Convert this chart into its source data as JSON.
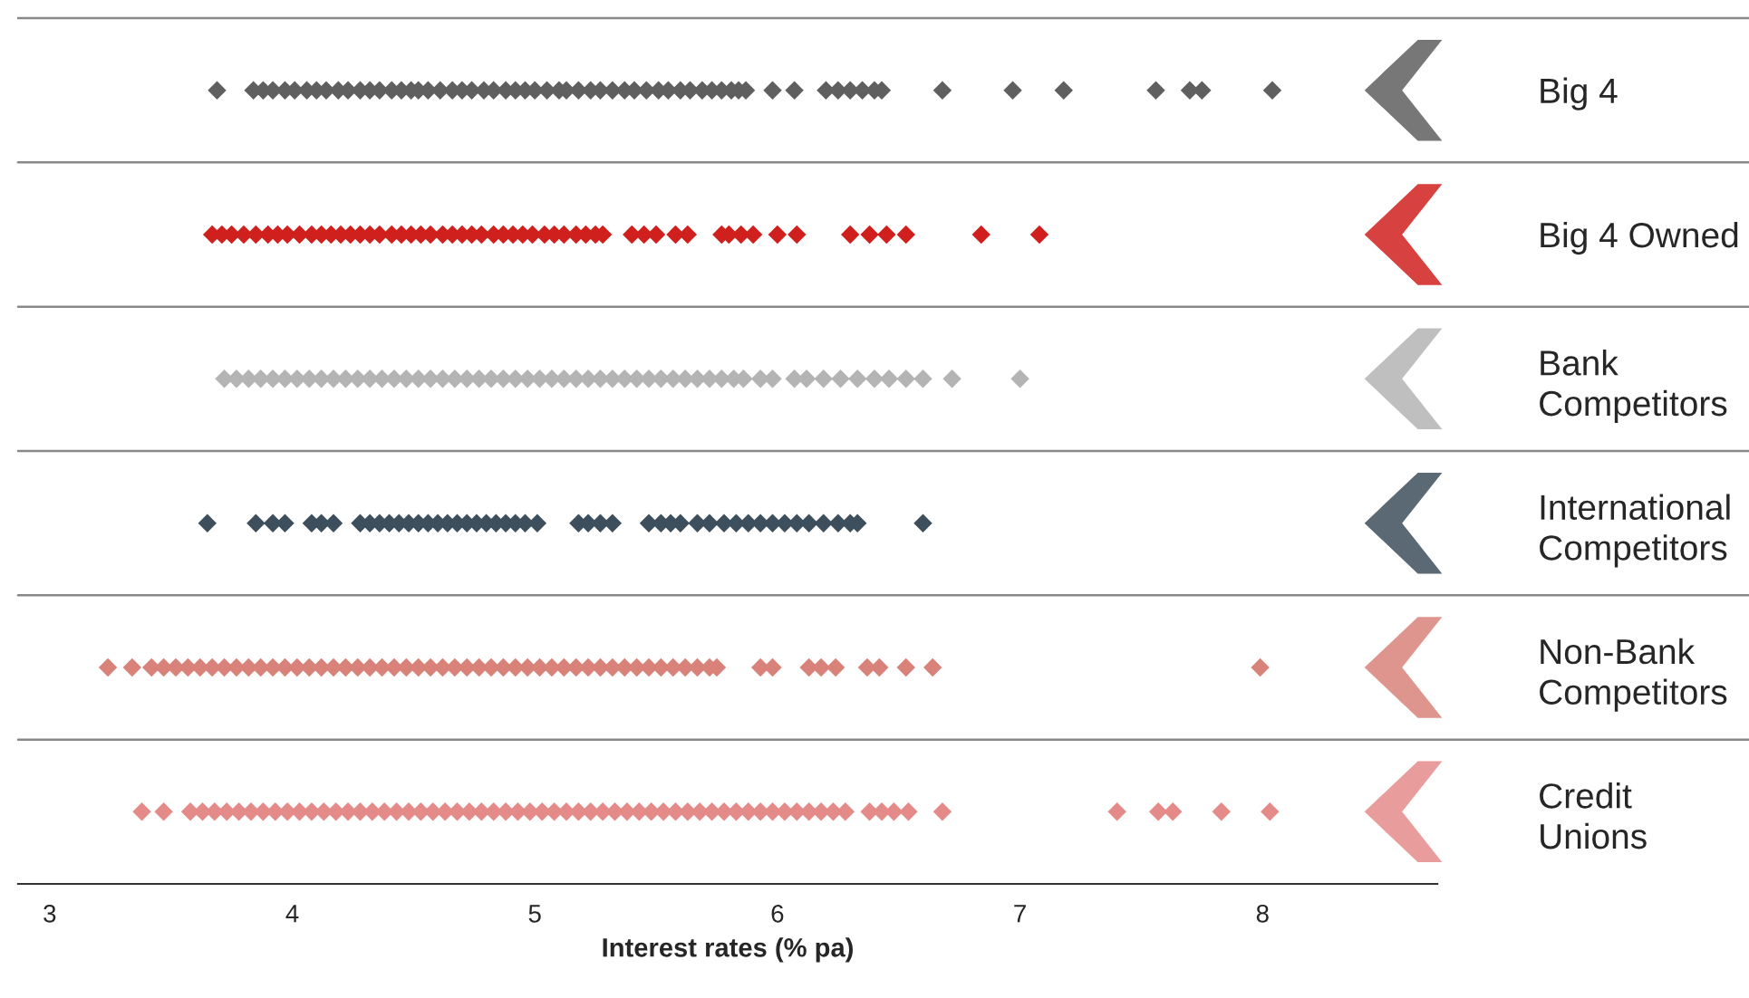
{
  "chart_data": {
    "type": "scatter",
    "orientation": "horizontal",
    "xlabel": "Interest rates (% pa)",
    "xlim": [
      2.87,
      8.72
    ],
    "xticks": [
      3,
      4,
      5,
      6,
      7,
      8
    ],
    "marker": "diamond",
    "grid": false,
    "categories": [
      "Big 4",
      "Big 4 Owned",
      "Bank Competitors",
      "International Competitors",
      "Non-Bank Competitors",
      "Credit Unions"
    ],
    "series": [
      {
        "color": "#5f5f5f",
        "x": [
          "Big 4",
          "Big 4",
          "Big 4",
          "Big 4",
          "Big 4",
          "Big 4",
          "Big 4",
          "Big 4",
          "Big 4",
          "Big 4",
          "Big 4",
          "Big 4",
          "Big 4",
          "Big 4",
          "Big 4",
          "Big 4",
          "Big 4",
          "Big 4",
          "Big 4",
          "Big 4",
          "Big 4",
          "Big 4",
          "Big 4",
          "Big 4",
          "Big 4",
          "Big 4",
          "Big 4",
          "Big 4",
          "Big 4",
          "Big 4",
          "Big 4",
          "Big 4",
          "Big 4",
          "Big 4",
          "Big 4",
          "Big 4",
          "Big 4",
          "Big 4",
          "Big 4",
          "Big 4",
          "Big 4",
          "Big 4",
          "Big 4",
          "Big 4",
          "Big 4",
          "Big 4",
          "Big 4",
          "Big 4",
          "Big 4",
          "Big 4",
          "Big 4",
          "Big 4",
          "Big 4",
          "Big 4",
          "Big 4",
          "Big 4",
          "Big 4",
          "Big 4",
          "Big 4",
          "Big 4",
          "Big 4",
          "Big 4",
          "Big 4",
          "Big 4"
        ],
        "values": [
          3.69,
          3.84,
          3.88,
          3.92,
          3.97,
          4.01,
          4.06,
          4.1,
          4.14,
          4.19,
          4.23,
          4.28,
          4.32,
          4.36,
          4.41,
          4.45,
          4.49,
          4.52,
          4.56,
          4.61,
          4.66,
          4.7,
          4.74,
          4.79,
          4.83,
          4.88,
          4.92,
          4.96,
          5.0,
          5.05,
          5.1,
          5.13,
          5.18,
          5.23,
          5.27,
          5.32,
          5.37,
          5.41,
          5.46,
          5.51,
          5.55,
          5.6,
          5.64,
          5.69,
          5.73,
          5.77,
          5.81,
          5.84,
          5.87,
          5.98,
          6.07,
          6.2,
          6.25,
          6.3,
          6.35,
          6.4,
          6.43,
          6.68,
          6.97,
          7.18,
          7.56,
          7.7,
          7.75,
          8.04
        ]
      },
      {
        "color": "#d0201e",
        "x": [
          "Big 4 Owned",
          "Big 4 Owned",
          "Big 4 Owned",
          "Big 4 Owned",
          "Big 4 Owned",
          "Big 4 Owned",
          "Big 4 Owned",
          "Big 4 Owned",
          "Big 4 Owned",
          "Big 4 Owned",
          "Big 4 Owned",
          "Big 4 Owned",
          "Big 4 Owned",
          "Big 4 Owned",
          "Big 4 Owned",
          "Big 4 Owned",
          "Big 4 Owned",
          "Big 4 Owned",
          "Big 4 Owned",
          "Big 4 Owned",
          "Big 4 Owned",
          "Big 4 Owned",
          "Big 4 Owned",
          "Big 4 Owned",
          "Big 4 Owned",
          "Big 4 Owned",
          "Big 4 Owned",
          "Big 4 Owned",
          "Big 4 Owned",
          "Big 4 Owned",
          "Big 4 Owned",
          "Big 4 Owned",
          "Big 4 Owned",
          "Big 4 Owned",
          "Big 4 Owned",
          "Big 4 Owned",
          "Big 4 Owned",
          "Big 4 Owned",
          "Big 4 Owned",
          "Big 4 Owned",
          "Big 4 Owned",
          "Big 4 Owned",
          "Big 4 Owned",
          "Big 4 Owned",
          "Big 4 Owned",
          "Big 4 Owned",
          "Big 4 Owned",
          "Big 4 Owned",
          "Big 4 Owned",
          "Big 4 Owned",
          "Big 4 Owned",
          "Big 4 Owned",
          "Big 4 Owned",
          "Big 4 Owned",
          "Big 4 Owned",
          "Big 4 Owned"
        ],
        "values": [
          3.67,
          3.71,
          3.75,
          3.8,
          3.85,
          3.9,
          3.94,
          3.98,
          4.03,
          4.08,
          4.12,
          4.16,
          4.2,
          4.24,
          4.28,
          4.32,
          4.36,
          4.41,
          4.45,
          4.49,
          4.53,
          4.57,
          4.62,
          4.66,
          4.7,
          4.74,
          4.78,
          4.83,
          4.87,
          4.91,
          4.95,
          4.99,
          5.04,
          5.08,
          5.12,
          5.17,
          5.21,
          5.25,
          5.28,
          5.4,
          5.45,
          5.5,
          5.58,
          5.63,
          5.77,
          5.8,
          5.85,
          5.9,
          6.0,
          6.08,
          6.3,
          6.38,
          6.45,
          6.53,
          6.84,
          7.08
        ]
      },
      {
        "color": "#b4b4b4",
        "x": [
          "Bank Competitors",
          "Bank Competitors",
          "Bank Competitors",
          "Bank Competitors",
          "Bank Competitors",
          "Bank Competitors",
          "Bank Competitors",
          "Bank Competitors",
          "Bank Competitors",
          "Bank Competitors",
          "Bank Competitors",
          "Bank Competitors",
          "Bank Competitors",
          "Bank Competitors",
          "Bank Competitors",
          "Bank Competitors",
          "Bank Competitors",
          "Bank Competitors",
          "Bank Competitors",
          "Bank Competitors",
          "Bank Competitors",
          "Bank Competitors",
          "Bank Competitors",
          "Bank Competitors",
          "Bank Competitors",
          "Bank Competitors",
          "Bank Competitors",
          "Bank Competitors",
          "Bank Competitors",
          "Bank Competitors",
          "Bank Competitors",
          "Bank Competitors",
          "Bank Competitors",
          "Bank Competitors",
          "Bank Competitors",
          "Bank Competitors",
          "Bank Competitors",
          "Bank Competitors",
          "Bank Competitors",
          "Bank Competitors",
          "Bank Competitors",
          "Bank Competitors",
          "Bank Competitors",
          "Bank Competitors",
          "Bank Competitors",
          "Bank Competitors",
          "Bank Competitors",
          "Bank Competitors",
          "Bank Competitors",
          "Bank Competitors",
          "Bank Competitors",
          "Bank Competitors",
          "Bank Competitors",
          "Bank Competitors",
          "Bank Competitors",
          "Bank Competitors",
          "Bank Competitors"
        ],
        "values": [
          3.72,
          3.77,
          3.82,
          3.87,
          3.92,
          3.97,
          4.02,
          4.07,
          4.12,
          4.17,
          4.22,
          4.27,
          4.32,
          4.37,
          4.42,
          4.47,
          4.52,
          4.57,
          4.62,
          4.67,
          4.72,
          4.77,
          4.82,
          4.87,
          4.92,
          4.97,
          5.02,
          5.07,
          5.12,
          5.17,
          5.22,
          5.27,
          5.32,
          5.37,
          5.42,
          5.47,
          5.52,
          5.57,
          5.62,
          5.67,
          5.72,
          5.77,
          5.82,
          5.86,
          5.93,
          5.98,
          6.07,
          6.12,
          6.19,
          6.26,
          6.33,
          6.4,
          6.46,
          6.53,
          6.6,
          6.72,
          7.0
        ]
      },
      {
        "color": "#3d4f5c",
        "x": [
          "International Competitors",
          "International Competitors",
          "International Competitors",
          "International Competitors",
          "International Competitors",
          "International Competitors",
          "International Competitors",
          "International Competitors",
          "International Competitors",
          "International Competitors",
          "International Competitors",
          "International Competitors",
          "International Competitors",
          "International Competitors",
          "International Competitors",
          "International Competitors",
          "International Competitors",
          "International Competitors",
          "International Competitors",
          "International Competitors",
          "International Competitors",
          "International Competitors",
          "International Competitors",
          "International Competitors",
          "International Competitors",
          "International Competitors",
          "International Competitors",
          "International Competitors",
          "International Competitors",
          "International Competitors",
          "International Competitors",
          "International Competitors",
          "International Competitors",
          "International Competitors",
          "International Competitors",
          "International Competitors",
          "International Competitors",
          "International Competitors",
          "International Competitors",
          "International Competitors",
          "International Competitors",
          "International Competitors",
          "International Competitors",
          "International Competitors",
          "International Competitors",
          "International Competitors",
          "International Competitors",
          "International Competitors",
          "International Competitors"
        ],
        "values": [
          3.65,
          3.85,
          3.92,
          3.97,
          4.08,
          4.12,
          4.17,
          4.28,
          4.32,
          4.36,
          4.4,
          4.44,
          4.48,
          4.52,
          4.56,
          4.6,
          4.64,
          4.68,
          4.72,
          4.76,
          4.8,
          4.84,
          4.88,
          4.92,
          4.96,
          5.01,
          5.18,
          5.22,
          5.27,
          5.32,
          5.47,
          5.52,
          5.56,
          5.6,
          5.67,
          5.72,
          5.78,
          5.83,
          5.88,
          5.93,
          5.98,
          6.03,
          6.08,
          6.13,
          6.19,
          6.25,
          6.3,
          6.33,
          6.6
        ]
      },
      {
        "color": "#d8827a",
        "x": [
          "Non-Bank Competitors",
          "Non-Bank Competitors",
          "Non-Bank Competitors",
          "Non-Bank Competitors",
          "Non-Bank Competitors",
          "Non-Bank Competitors",
          "Non-Bank Competitors",
          "Non-Bank Competitors",
          "Non-Bank Competitors",
          "Non-Bank Competitors",
          "Non-Bank Competitors",
          "Non-Bank Competitors",
          "Non-Bank Competitors",
          "Non-Bank Competitors",
          "Non-Bank Competitors",
          "Non-Bank Competitors",
          "Non-Bank Competitors",
          "Non-Bank Competitors",
          "Non-Bank Competitors",
          "Non-Bank Competitors",
          "Non-Bank Competitors",
          "Non-Bank Competitors",
          "Non-Bank Competitors",
          "Non-Bank Competitors",
          "Non-Bank Competitors",
          "Non-Bank Competitors",
          "Non-Bank Competitors",
          "Non-Bank Competitors",
          "Non-Bank Competitors",
          "Non-Bank Competitors",
          "Non-Bank Competitors",
          "Non-Bank Competitors",
          "Non-Bank Competitors",
          "Non-Bank Competitors",
          "Non-Bank Competitors",
          "Non-Bank Competitors",
          "Non-Bank Competitors",
          "Non-Bank Competitors",
          "Non-Bank Competitors",
          "Non-Bank Competitors",
          "Non-Bank Competitors",
          "Non-Bank Competitors",
          "Non-Bank Competitors",
          "Non-Bank Competitors",
          "Non-Bank Competitors",
          "Non-Bank Competitors",
          "Non-Bank Competitors",
          "Non-Bank Competitors",
          "Non-Bank Competitors",
          "Non-Bank Competitors",
          "Non-Bank Competitors",
          "Non-Bank Competitors",
          "Non-Bank Competitors",
          "Non-Bank Competitors",
          "Non-Bank Competitors",
          "Non-Bank Competitors",
          "Non-Bank Competitors",
          "Non-Bank Competitors",
          "Non-Bank Competitors",
          "Non-Bank Competitors"
        ],
        "values": [
          3.24,
          3.34,
          3.42,
          3.47,
          3.52,
          3.57,
          3.62,
          3.67,
          3.72,
          3.77,
          3.82,
          3.87,
          3.92,
          3.97,
          4.02,
          4.07,
          4.12,
          4.17,
          4.22,
          4.27,
          4.32,
          4.37,
          4.42,
          4.47,
          4.52,
          4.57,
          4.62,
          4.67,
          4.72,
          4.77,
          4.82,
          4.87,
          4.92,
          4.97,
          5.02,
          5.07,
          5.12,
          5.17,
          5.22,
          5.27,
          5.32,
          5.37,
          5.42,
          5.47,
          5.52,
          5.57,
          5.62,
          5.67,
          5.72,
          5.75,
          5.93,
          5.98,
          6.13,
          6.18,
          6.24,
          6.37,
          6.42,
          6.53,
          6.64,
          7.99
        ]
      },
      {
        "color": "#e48b89",
        "x": [
          "Credit Unions",
          "Credit Unions",
          "Credit Unions",
          "Credit Unions",
          "Credit Unions",
          "Credit Unions",
          "Credit Unions",
          "Credit Unions",
          "Credit Unions",
          "Credit Unions",
          "Credit Unions",
          "Credit Unions",
          "Credit Unions",
          "Credit Unions",
          "Credit Unions",
          "Credit Unions",
          "Credit Unions",
          "Credit Unions",
          "Credit Unions",
          "Credit Unions",
          "Credit Unions",
          "Credit Unions",
          "Credit Unions",
          "Credit Unions",
          "Credit Unions",
          "Credit Unions",
          "Credit Unions",
          "Credit Unions",
          "Credit Unions",
          "Credit Unions",
          "Credit Unions",
          "Credit Unions",
          "Credit Unions",
          "Credit Unions",
          "Credit Unions",
          "Credit Unions",
          "Credit Unions",
          "Credit Unions",
          "Credit Unions",
          "Credit Unions",
          "Credit Unions",
          "Credit Unions",
          "Credit Unions",
          "Credit Unions",
          "Credit Unions",
          "Credit Unions",
          "Credit Unions",
          "Credit Unions",
          "Credit Unions",
          "Credit Unions",
          "Credit Unions",
          "Credit Unions",
          "Credit Unions",
          "Credit Unions",
          "Credit Unions",
          "Credit Unions",
          "Credit Unions",
          "Credit Unions",
          "Credit Unions",
          "Credit Unions",
          "Credit Unions",
          "Credit Unions",
          "Credit Unions",
          "Credit Unions",
          "Credit Unions",
          "Credit Unions",
          "Credit Unions"
        ],
        "values": [
          3.38,
          3.47,
          3.58,
          3.63,
          3.68,
          3.73,
          3.78,
          3.83,
          3.88,
          3.93,
          3.98,
          4.03,
          4.08,
          4.13,
          4.18,
          4.23,
          4.28,
          4.33,
          4.38,
          4.43,
          4.48,
          4.53,
          4.58,
          4.63,
          4.68,
          4.73,
          4.78,
          4.83,
          4.88,
          4.93,
          4.98,
          5.03,
          5.08,
          5.13,
          5.18,
          5.23,
          5.28,
          5.33,
          5.38,
          5.43,
          5.48,
          5.53,
          5.58,
          5.63,
          5.68,
          5.73,
          5.78,
          5.83,
          5.88,
          5.93,
          5.98,
          6.03,
          6.08,
          6.13,
          6.18,
          6.23,
          6.28,
          6.38,
          6.43,
          6.48,
          6.54,
          6.68,
          7.4,
          7.57,
          7.63,
          7.83,
          8.03
        ]
      }
    ]
  }
}
